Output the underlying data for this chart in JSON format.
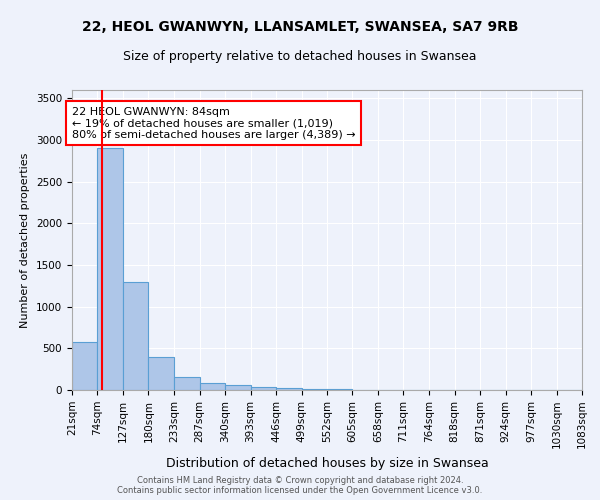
{
  "title1": "22, HEOL GWANWYN, LLANSAMLET, SWANSEA, SA7 9RB",
  "title2": "Size of property relative to detached houses in Swansea",
  "xlabel": "Distribution of detached houses by size in Swansea",
  "ylabel": "Number of detached properties",
  "bin_edges": [
    21,
    74,
    127,
    180,
    233,
    287,
    340,
    393,
    446,
    499,
    552,
    605,
    658,
    711,
    764,
    818,
    871,
    924,
    977,
    1030,
    1083
  ],
  "bar_heights": [
    580,
    2900,
    1300,
    400,
    160,
    90,
    60,
    40,
    25,
    15,
    8,
    5,
    3,
    2,
    2,
    1,
    1,
    1,
    1,
    1
  ],
  "bar_color": "#aec6e8",
  "bar_edge_color": "#5a9fd4",
  "red_line_x": 84,
  "annotation_text": "22 HEOL GWANWYN: 84sqm\n← 19% of detached houses are smaller (1,019)\n80% of semi-detached houses are larger (4,389) →",
  "annotation_box_color": "white",
  "annotation_box_edge_color": "red",
  "annotation_fontsize": 8.0,
  "footer_text": "Contains HM Land Registry data © Crown copyright and database right 2024.\nContains public sector information licensed under the Open Government Licence v3.0.",
  "background_color": "#eef2fb",
  "ylim": [
    0,
    3600
  ],
  "yticks": [
    0,
    500,
    1000,
    1500,
    2000,
    2500,
    3000,
    3500
  ],
  "title1_fontsize": 10,
  "title2_fontsize": 9,
  "xlabel_fontsize": 9,
  "ylabel_fontsize": 8,
  "tick_fontsize": 7.5
}
